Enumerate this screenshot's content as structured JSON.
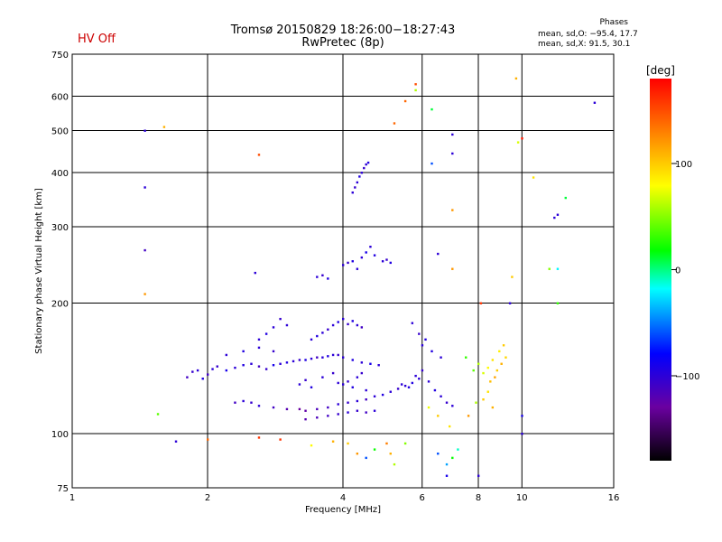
{
  "header": {
    "hv_status": "HV Off",
    "hv_color": "#cc0000",
    "title_line1": "Tromsø 20150829 18:26:00−18:27:43",
    "title_line2": "RwPretec (8p)",
    "phase_title": "Phases",
    "phase_o": "mean, sd,O: −95.4, 17.7",
    "phase_x": "mean, sd,X:  91.5, 30.1"
  },
  "chart_data": {
    "type": "scatter",
    "xlabel": "Frequency [MHz]",
    "ylabel": "Stationary phase Virtual Height [km]",
    "x_scale": "log",
    "y_scale": "log",
    "xlim": [
      1,
      16
    ],
    "ylim": [
      75,
      750
    ],
    "x_ticks": [
      1,
      2,
      4,
      6,
      8,
      10,
      16
    ],
    "x_tick_labels": [
      "1",
      "2",
      "4",
      "6",
      "8",
      "10",
      "16"
    ],
    "x_grid": [
      2,
      4,
      6,
      8,
      10
    ],
    "y_ticks": [
      75,
      100,
      200,
      300,
      400,
      500,
      600,
      750
    ],
    "y_tick_labels": [
      "75",
      "100",
      "200",
      "300",
      "400",
      "500",
      "600",
      "750"
    ],
    "y_grid": [
      100,
      200,
      300,
      400,
      500,
      600
    ],
    "grid": true,
    "colorbar": {
      "label": "[deg]",
      "ticks": [
        100,
        0,
        -100
      ],
      "tick_labels": [
        "100",
        "0",
        "−100"
      ],
      "range": [
        -180,
        180
      ],
      "colors": [
        "#000000",
        "#6a00a0",
        "#0000ff",
        "#00ffff",
        "#00ff00",
        "#ffff00",
        "#ff8000",
        "#ff0000"
      ]
    },
    "series": [
      {
        "points": [
          [
            1.8,
            135,
            -110
          ],
          [
            1.85,
            139,
            -105
          ],
          [
            1.9,
            140,
            -100
          ],
          [
            1.95,
            134,
            -95
          ],
          [
            2.0,
            137,
            -110
          ],
          [
            2.05,
            141,
            -100
          ],
          [
            2.1,
            143,
            -105
          ],
          [
            2.2,
            140,
            -90
          ],
          [
            2.3,
            142,
            -100
          ],
          [
            2.4,
            144,
            -95
          ],
          [
            2.5,
            145,
            -100
          ],
          [
            2.6,
            143,
            -110
          ],
          [
            2.7,
            141,
            -105
          ],
          [
            2.8,
            144,
            -90
          ],
          [
            2.9,
            145,
            -100
          ],
          [
            3.0,
            146,
            -95
          ],
          [
            3.1,
            147,
            -100
          ],
          [
            3.2,
            148,
            -105
          ],
          [
            3.3,
            148,
            -95
          ],
          [
            3.4,
            149,
            -100
          ],
          [
            3.5,
            150,
            -110
          ],
          [
            3.6,
            150,
            -100
          ],
          [
            3.7,
            151,
            -95
          ],
          [
            3.8,
            152,
            -100
          ],
          [
            3.9,
            152,
            -105
          ],
          [
            4.0,
            150,
            -100
          ],
          [
            4.2,
            148,
            -95
          ],
          [
            4.4,
            146,
            -100
          ],
          [
            4.6,
            145,
            -90
          ],
          [
            4.8,
            144,
            -100
          ],
          [
            2.3,
            118,
            -110
          ],
          [
            2.4,
            119,
            -100
          ],
          [
            2.5,
            118,
            -105
          ],
          [
            2.6,
            116,
            -100
          ],
          [
            2.8,
            115,
            -110
          ],
          [
            3.0,
            114,
            -120
          ],
          [
            3.2,
            114,
            -130
          ],
          [
            3.3,
            113,
            -125
          ],
          [
            3.5,
            114,
            -115
          ],
          [
            3.7,
            115,
            -110
          ],
          [
            3.9,
            117,
            -100
          ],
          [
            4.1,
            118,
            -105
          ],
          [
            4.3,
            119,
            -100
          ],
          [
            4.5,
            120,
            -110
          ],
          [
            4.7,
            122,
            -100
          ],
          [
            4.9,
            123,
            -95
          ],
          [
            5.1,
            125,
            -100
          ],
          [
            5.3,
            127,
            -105
          ],
          [
            5.5,
            129,
            -100
          ],
          [
            5.7,
            131,
            -95
          ],
          [
            5.9,
            134,
            -100
          ],
          [
            3.3,
            108,
            -120
          ],
          [
            3.5,
            109,
            -115
          ],
          [
            3.7,
            110,
            -110
          ],
          [
            3.9,
            111,
            -105
          ],
          [
            4.1,
            112,
            -100
          ],
          [
            4.3,
            113,
            -105
          ],
          [
            4.5,
            112,
            -110
          ],
          [
            4.7,
            113,
            -100
          ],
          [
            3.4,
            165,
            -100
          ],
          [
            3.5,
            168,
            -95
          ],
          [
            3.6,
            171,
            -100
          ],
          [
            3.7,
            174,
            -105
          ],
          [
            3.8,
            178,
            -100
          ],
          [
            3.9,
            181,
            -95
          ],
          [
            4.0,
            184,
            -100
          ],
          [
            4.1,
            179,
            -105
          ],
          [
            4.2,
            182,
            -95
          ],
          [
            4.3,
            178,
            -100
          ],
          [
            4.4,
            176,
            -110
          ],
          [
            2.6,
            165,
            -100
          ],
          [
            2.7,
            170,
            -95
          ],
          [
            2.8,
            176,
            -100
          ],
          [
            2.9,
            184,
            -105
          ],
          [
            3.0,
            178,
            -100
          ],
          [
            3.5,
            230,
            -100
          ],
          [
            3.6,
            232,
            -105
          ],
          [
            3.7,
            228,
            -95
          ],
          [
            4.0,
            245,
            -100
          ],
          [
            4.1,
            248,
            -105
          ],
          [
            4.2,
            250,
            -95
          ],
          [
            4.4,
            255,
            -100
          ],
          [
            4.5,
            262,
            -90
          ],
          [
            4.6,
            270,
            -100
          ],
          [
            4.7,
            258,
            -95
          ],
          [
            4.3,
            240,
            -100
          ],
          [
            4.2,
            360,
            -100
          ],
          [
            4.25,
            370,
            -105
          ],
          [
            4.3,
            380,
            -100
          ],
          [
            4.35,
            392,
            -95
          ],
          [
            4.4,
            400,
            -100
          ],
          [
            4.45,
            410,
            -105
          ],
          [
            4.5,
            418,
            -100
          ],
          [
            4.55,
            422,
            -95
          ],
          [
            4.9,
            250,
            -100
          ],
          [
            5.0,
            252,
            -105
          ],
          [
            5.1,
            248,
            -95
          ],
          [
            5.4,
            130,
            -100
          ],
          [
            5.6,
            128,
            -95
          ],
          [
            5.8,
            136,
            -100
          ],
          [
            6.0,
            140,
            -105
          ],
          [
            6.2,
            132,
            -100
          ],
          [
            6.4,
            126,
            -95
          ],
          [
            6.6,
            122,
            -100
          ],
          [
            6.8,
            118,
            -105
          ],
          [
            7.0,
            116,
            -100
          ],
          [
            6.0,
            160,
            -100
          ],
          [
            6.3,
            155,
            -95
          ],
          [
            6.6,
            150,
            -100
          ],
          [
            5.7,
            180,
            -100
          ],
          [
            5.9,
            170,
            -105
          ],
          [
            6.1,
            165,
            -95
          ],
          [
            4.0,
            130,
            -100
          ],
          [
            4.1,
            132,
            -105
          ],
          [
            4.2,
            128,
            -95
          ],
          [
            4.3,
            135,
            -100
          ],
          [
            4.4,
            138,
            -105
          ],
          [
            4.5,
            126,
            -100
          ],
          [
            3.2,
            130,
            -100
          ],
          [
            3.3,
            133,
            -105
          ],
          [
            3.4,
            128,
            -95
          ],
          [
            3.6,
            135,
            -100
          ],
          [
            3.8,
            138,
            -105
          ],
          [
            3.9,
            131,
            -100
          ],
          [
            2.2,
            152,
            -100
          ],
          [
            2.4,
            155,
            -95
          ],
          [
            2.6,
            158,
            -100
          ],
          [
            2.8,
            155,
            -105
          ],
          [
            7.5,
            150,
            30
          ],
          [
            7.8,
            140,
            40
          ],
          [
            8.0,
            145,
            60
          ],
          [
            8.2,
            138,
            70
          ],
          [
            8.4,
            142,
            80
          ],
          [
            8.6,
            148,
            90
          ],
          [
            8.8,
            140,
            100
          ],
          [
            9.0,
            145,
            110
          ],
          [
            9.2,
            150,
            95
          ],
          [
            8.5,
            132,
            105
          ],
          [
            8.7,
            135,
            115
          ],
          [
            8.9,
            155,
            85
          ],
          [
            9.1,
            160,
            100
          ],
          [
            8.2,
            120,
            100
          ],
          [
            8.4,
            125,
            90
          ],
          [
            8.6,
            115,
            110
          ],
          [
            7.6,
            110,
            120
          ],
          [
            7.9,
            118,
            60
          ],
          [
            6.9,
            104,
            90
          ],
          [
            6.5,
            110,
            100
          ],
          [
            6.2,
            115,
            75
          ],
          [
            7.2,
            92,
            -10
          ],
          [
            7.0,
            88,
            20
          ],
          [
            6.8,
            85,
            -40
          ],
          [
            6.5,
            90,
            -60
          ],
          [
            5.1,
            90,
            110
          ],
          [
            5.2,
            85,
            60
          ],
          [
            5.0,
            95,
            130
          ],
          [
            4.5,
            88,
            -60
          ],
          [
            4.7,
            92,
            20
          ],
          [
            5.5,
            95,
            50
          ],
          [
            4.1,
            95,
            100
          ],
          [
            4.3,
            90,
            120
          ],
          [
            3.4,
            94,
            80
          ],
          [
            3.8,
            96,
            110
          ],
          [
            1.45,
            370,
            -100
          ],
          [
            1.45,
            265,
            -110
          ],
          [
            1.45,
            500,
            -100
          ],
          [
            1.6,
            510,
            110
          ],
          [
            1.45,
            210,
            120
          ],
          [
            1.55,
            111,
            40
          ],
          [
            1.7,
            96,
            -100
          ],
          [
            2.6,
            440,
            150
          ],
          [
            2.55,
            235,
            -100
          ],
          [
            2.0,
            97,
            140
          ],
          [
            2.9,
            97,
            160
          ],
          [
            2.6,
            98,
            160
          ],
          [
            5.2,
            520,
            140
          ],
          [
            5.5,
            585,
            140
          ],
          [
            5.8,
            640,
            150
          ],
          [
            5.8,
            620,
            60
          ],
          [
            6.3,
            560,
            10
          ],
          [
            6.3,
            420,
            -60
          ],
          [
            7.0,
            490,
            -100
          ],
          [
            7.0,
            443,
            -100
          ],
          [
            7.0,
            328,
            120
          ],
          [
            7.0,
            240,
            120
          ],
          [
            6.5,
            260,
            -100
          ],
          [
            10.0,
            480,
            170
          ],
          [
            9.8,
            470,
            70
          ],
          [
            9.7,
            660,
            110
          ],
          [
            10.6,
            390,
            90
          ],
          [
            12.0,
            320,
            -100
          ],
          [
            11.8,
            315,
            -100
          ],
          [
            12.5,
            350,
            10
          ],
          [
            14.5,
            580,
            -100
          ],
          [
            12.0,
            240,
            -20
          ],
          [
            12.0,
            200,
            30
          ],
          [
            8.1,
            200,
            160
          ],
          [
            9.4,
            200,
            -100
          ],
          [
            10.0,
            110,
            -90
          ],
          [
            10.0,
            100,
            -100
          ],
          [
            6.8,
            80,
            -90
          ],
          [
            8.0,
            80,
            -100
          ],
          [
            9.5,
            230,
            100
          ],
          [
            11.5,
            240,
            50
          ]
        ]
      }
    ]
  }
}
